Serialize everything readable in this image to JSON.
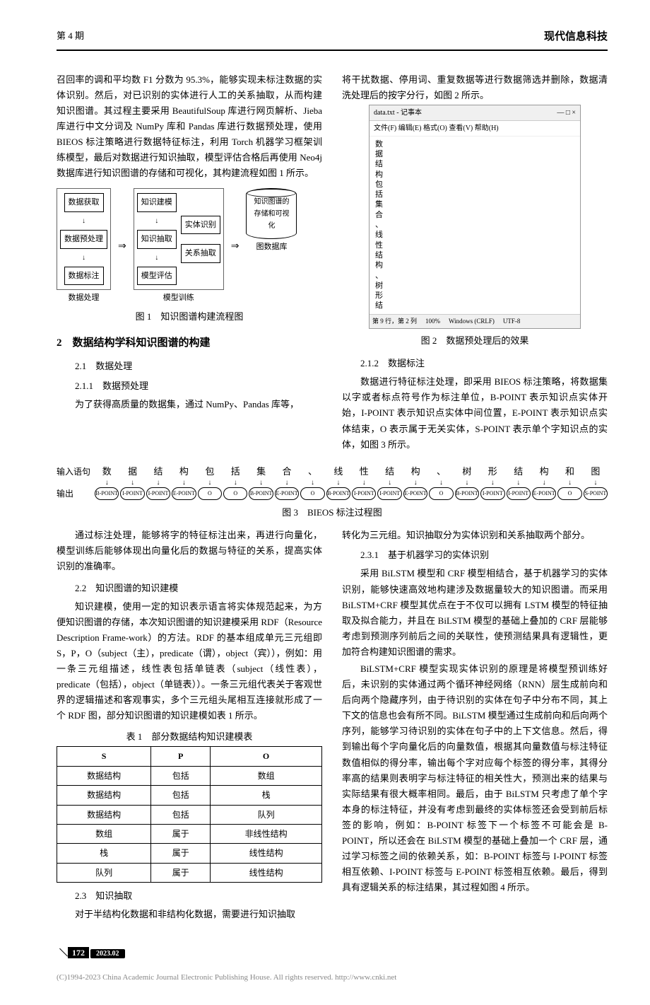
{
  "header": {
    "left": "第 4 期",
    "right": "现代信息科技"
  },
  "col1": {
    "p1": "召回率的调和平均数 F1 分数为 95.3%，能够实现未标注数据的实体识别。然后，对已识别的实体进行人工的关系抽取，从而构建知识图谱。其过程主要采用 BeautifulSoup 库进行网页解析、Jieba 库进行中文分词及 NumPy 库和 Pandas 库进行数据预处理，使用 BIEOS 标注策略进行数据特征标注，利用 Torch 机器学习框架训练模型，最后对数据进行知识抽取，模型评估合格后再使用 Neo4j 数据库进行知识图谱的存储和可视化，其构建流程如图 1 所示。"
  },
  "fig1": {
    "g1_label": "数据处理",
    "g1_boxes": [
      "数据获取",
      "数据预处理",
      "数据标注"
    ],
    "g2_label": "模型训练",
    "g2_boxes": [
      "知识建模",
      "知识抽取",
      "模型评估"
    ],
    "g2_side": [
      "实体识别",
      "关系抽取"
    ],
    "db": "知识图谱的存储和可视化",
    "db_label": "图数据库",
    "caption": "图 1　知识图谱构建流程图"
  },
  "sec2": {
    "title": "2　数据结构学科知识图谱的构建",
    "s21": "2.1　数据处理",
    "s211": "2.1.1　数据预处理",
    "p211": "为了获得高质量的数据集，通过 NumPy、Pandas 库等，"
  },
  "col2": {
    "p1": "将干扰数据、停用词、重复数据等进行数据筛选并删除，数据清洗处理后的按字分行，如图 2 所示。"
  },
  "fig2": {
    "title_left": "data.txt - 记事本",
    "title_icons": "—  □  ×",
    "menu": "文件(F)  编辑(E)  格式(O)  查看(V)  帮助(H)",
    "chars": [
      "数",
      "据",
      "结",
      "构",
      "包",
      "括",
      "集",
      "合",
      "、",
      "线",
      "性",
      "结",
      "构",
      "、",
      "树",
      "形",
      "结"
    ],
    "status": [
      "第 9 行，第 2 列",
      "100%",
      "Windows (CRLF)",
      "UTF-8"
    ],
    "caption": "图 2　数据预处理后的效果"
  },
  "s212": {
    "title": "2.1.2　数据标注",
    "p": "数据进行特征标注处理，即采用 BIEOS 标注策略，将数据集以字或者标点符号作为标注单位，B-POINT 表示知识点实体开始，I-POINT 表示知识点实体中间位置，E-POINT 表示知识点实体结束，O 表示属于无关实体，S-POINT 表示单个字知识点的实体，如图 3 所示。"
  },
  "fig3": {
    "row1_label": "输入语句",
    "row1": [
      "数",
      "据",
      "结",
      "构",
      "包",
      "括",
      "集",
      "合",
      "、",
      "线",
      "性",
      "结",
      "构",
      "、",
      "树",
      "形",
      "结",
      "构",
      "和",
      "图"
    ],
    "row2_label": "输出",
    "row2": [
      "B-POINT",
      "I-POINT",
      "I-POINT",
      "E-POINT",
      "O",
      "O",
      "B-POINT",
      "E-POINT",
      "O",
      "B-POINT",
      "I-POINT",
      "I-POINT",
      "E-POINT",
      "O",
      "B-POINT",
      "I-POINT",
      "I-POINT",
      "E-POINT",
      "O",
      "S-POINT"
    ],
    "caption": "图 3　BIEOS 标注过程图"
  },
  "lower_left": {
    "p1": "通过标注处理，能够将字的特征标注出来，再进行向量化，模型训练后能够体现出向量化后的数据与特征的关系，提高实体识别的准确率。",
    "s22": "2.2　知识图谱的知识建模",
    "p22": "知识建模，使用一定的知识表示语言将实体规范起来，为方便知识图谱的存储，本次知识图谱的知识建模采用 RDF（Resource Description Frame-work）的方法。RDF 的基本组成单元三元组即 S，P，O（subject（主），predicate（谓），object（宾）），例如：用一条三元组描述，线性表包括单链表（subject（线性表），predicate（包括），object（单链表））。一条三元组代表关于客观世界的逻辑描述和客观事实，多个三元组头尾相互连接就形成了一个 RDF 图，部分知识图谱的知识建模如表 1 所示。",
    "tbl_caption": "表 1　部分数据结构知识建模表",
    "s23": "2.3　知识抽取",
    "p23": "对于半结构化数据和非结构化数据，需要进行知识抽取"
  },
  "table1": {
    "headers": [
      "S",
      "P",
      "O"
    ],
    "rows": [
      [
        "数据结构",
        "包括",
        "数组"
      ],
      [
        "数据结构",
        "包括",
        "栈"
      ],
      [
        "数据结构",
        "包括",
        "队列"
      ],
      [
        "数组",
        "属于",
        "非线性结构"
      ],
      [
        "栈",
        "属于",
        "线性结构"
      ],
      [
        "队列",
        "属于",
        "线性结构"
      ]
    ]
  },
  "lower_right": {
    "p0": "转化为三元组。知识抽取分为实体识别和关系抽取两个部分。",
    "s231": "2.3.1　基于机器学习的实体识别",
    "p1": "采用 BiLSTM 模型和 CRF 模型相结合，基于机器学习的实体识别，能够快速高效地构建涉及数据量较大的知识图谱。而采用 BiLSTM+CRF 模型其优点在于不仅可以拥有 LSTM 模型的特征抽取及拟合能力，并且在 BiLSTM 模型的基础上叠加的 CRF 层能够考虑到预测序列前后之间的关联性，使预测结果具有逻辑性，更加符合构建知识图谱的需求。",
    "p2": "BiLSTM+CRF 模型实现实体识别的原理是将模型预训练好后，未识别的实体通过两个循环神经网络（RNN）层生成前向和后向两个隐藏序列，由于待识别的实体在句子中分布不同，其上下文的信息也会有所不同。BiLSTM 模型通过生成前向和后向两个序列，能够学习待识别的实体在句子中的上下文信息。然后，得到输出每个字向量化后的向量数值，根据其向量数值与标注特征数值相似的得分率，输出每个字对应每个标签的得分率，其得分率高的结果则表明字与标注特征的相关性大，预测出来的结果与实际结果有很大概率相同。最后，由于 BiLSTM 只考虑了单个字本身的标注特征，并没有考虑到最终的实体标签还会受到前后标签的影响，例如：B-POINT 标签下一个标签不可能会是 B-POINT，所以还会在 BiLSTM 模型的基础上叠加一个 CRF 层，通过学习标签之间的依赖关系，如：B-POINT 标签与 I-POINT 标签相互依赖、I-POINT 标签与 E-POINT 标签相互依赖。最后，得到具有逻辑关系的标注结果，其过程如图 4 所示。"
  },
  "footer": {
    "page": "172",
    "date": "2023.02",
    "copyright": "(C)1994-2023 China Academic Journal Electronic Publishing House. All rights reserved.    http://www.cnki.net"
  }
}
